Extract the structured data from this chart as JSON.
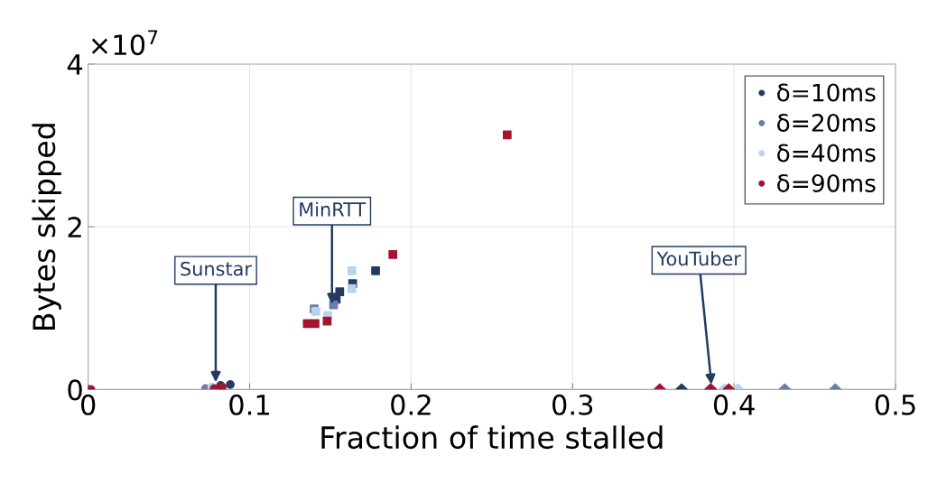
{
  "chart_data": {
    "type": "scatter",
    "xlabel": "Fraction of time stalled",
    "ylabel": "Bytes skipped",
    "xlim": [
      0,
      0.5
    ],
    "xticks": [
      0,
      0.1,
      0.2,
      0.3,
      0.4,
      0.5
    ],
    "ylim": [
      0,
      4
    ],
    "yticks": [
      0,
      2,
      4
    ],
    "grid": true,
    "legend": "top right",
    "annotations": [
      "×10$^{7}$",
      {
        "text": "MinRTT",
        "x": 0.151,
        "y": 1.05
      },
      {
        "text": "Sunstar",
        "x": 0.079,
        "y": 0.09
      },
      {
        "text": "YouTuber",
        "x": 0.386,
        "y": 0.06
      }
    ],
    "series": [
      {
        "name": "δ=10ms",
        "color": "#243a63",
        "marker": "square",
        "x": [
          0.1536,
          0.1558,
          0.1638,
          0.178
        ],
        "values": [
          1.11,
          1.2,
          1.3,
          1.46
        ]
      },
      {
        "name": "δ=20ms",
        "color": "#6a7fa8",
        "marker": "square",
        "x": [
          0.14,
          0.152
        ],
        "values": [
          0.99,
          1.04
        ]
      },
      {
        "name": "δ=40ms",
        "color": "#b9d3ee",
        "marker": "square",
        "x": [
          0.141,
          0.1484,
          0.1633,
          0.1633
        ],
        "values": [
          0.96,
          0.91,
          1.24,
          1.46
        ]
      },
      {
        "name": "δ=90ms",
        "color": "#a3142e",
        "marker": "square",
        "x": [
          0.1357,
          0.1405,
          0.148,
          0.1887,
          0.2595
        ],
        "values": [
          0.81,
          0.81,
          0.84,
          1.66,
          3.13
        ]
      },
      {
        "color": "#243a63",
        "marker": "circle",
        "x": [
          0,
          0.082,
          0.088
        ],
        "values": [
          0,
          0.05,
          0.06
        ]
      },
      {
        "color": "#6a7fa8",
        "marker": "circle",
        "x": [
          0.0727
        ],
        "values": [
          0.01
        ]
      },
      {
        "color": "#b9d3ee",
        "marker": "circle",
        "x": [
          0.0766
        ],
        "values": [
          0.03
        ]
      },
      {
        "color": "#a3142e",
        "marker": "circle",
        "x": [
          0.0017,
          0.078,
          0.083
        ],
        "values": [
          0,
          0.01,
          0.03
        ]
      },
      {
        "color": "#243a63",
        "marker": "diamond",
        "x": [
          0.3675,
          0.3855
        ],
        "values": [
          0,
          0
        ]
      },
      {
        "color": "#6a7fa8",
        "marker": "diamond",
        "x": [
          0.4314,
          0.4627
        ],
        "values": [
          0,
          0
        ]
      },
      {
        "color": "#b9d3ee",
        "marker": "diamond",
        "x": [
          0.354,
          0.394,
          0.4023
        ],
        "values": [
          0,
          0,
          0
        ]
      },
      {
        "color": "#a3142e",
        "marker": "diamond",
        "x": [
          0.354,
          0.3855,
          0.3967
        ],
        "values": [
          0,
          0,
          0
        ]
      }
    ]
  }
}
